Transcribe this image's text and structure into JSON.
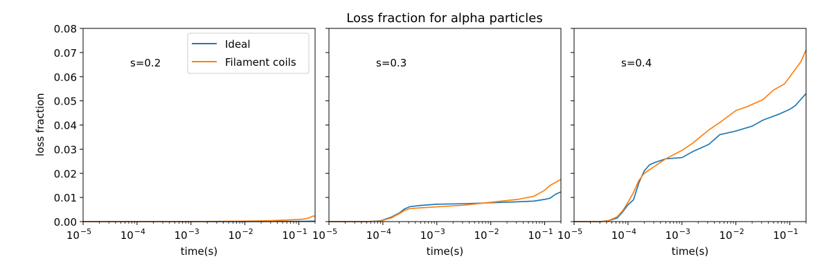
{
  "title": "Loss fraction for alpha particles",
  "colors": {
    "ideal": "#1f77b4",
    "filament": "#ff7f0e",
    "axes": "#000000"
  },
  "chart_data": {
    "type": "line",
    "title": "Loss fraction for alpha particles",
    "xscale": "log",
    "xlim": [
      1e-05,
      0.2
    ],
    "ylim": [
      0,
      0.08
    ],
    "yticks": [
      0,
      0.01,
      0.02,
      0.03,
      0.04,
      0.05,
      0.06,
      0.07,
      0.08
    ],
    "ytick_labels": [
      "0.00",
      "0.01",
      "0.02",
      "0.03",
      "0.04",
      "0.05",
      "0.06",
      "0.07",
      "0.08"
    ],
    "xticks": [
      -5,
      -4,
      -3,
      -2,
      -1
    ],
    "xtick_base": "10",
    "xtick_exponents": [
      "−5",
      "−4",
      "−3",
      "−2",
      "−1"
    ],
    "xlabel": "time(s)",
    "ylabel": "loss fraction",
    "legend": {
      "location": "top-right of first panel",
      "entries": [
        "Ideal",
        "Filament coils"
      ]
    },
    "panels": [
      {
        "label": "s=0.2",
        "series": [
          {
            "name": "Ideal",
            "x": [
              -5,
              -4,
              -3,
              -2,
              -1.1,
              -0.7
            ],
            "y": [
              0,
              0,
              0,
              0,
              0.0001,
              0.0002
            ]
          },
          {
            "name": "Filament coils",
            "x": [
              -5,
              -3,
              -2,
              -1.5,
              -1.2,
              -1.0,
              -0.9,
              -0.8,
              -0.75,
              -0.7
            ],
            "y": [
              0,
              0,
              0.0002,
              0.0004,
              0.0007,
              0.0009,
              0.0011,
              0.0016,
              0.0022,
              0.0023
            ]
          }
        ]
      },
      {
        "label": "s=0.3",
        "series": [
          {
            "name": "Ideal",
            "x": [
              -5,
              -4.3,
              -4.05,
              -3.85,
              -3.7,
              -3.6,
              -3.5,
              -3.3,
              -3.0,
              -2.5,
              -2.0,
              -1.5,
              -1.2,
              -1.0,
              -0.9,
              -0.8,
              -0.7
            ],
            "y": [
              0,
              0,
              0.0003,
              0.0018,
              0.0035,
              0.0052,
              0.0062,
              0.0067,
              0.0072,
              0.0074,
              0.0078,
              0.0082,
              0.0085,
              0.0092,
              0.0097,
              0.0113,
              0.0123
            ]
          },
          {
            "name": "Filament coils",
            "x": [
              -5,
              -4.3,
              -4.05,
              -3.85,
              -3.7,
              -3.6,
              -3.5,
              -3.3,
              -3.0,
              -2.5,
              -2.0,
              -1.5,
              -1.2,
              -1.0,
              -0.9,
              -0.8,
              -0.7
            ],
            "y": [
              0,
              0,
              0.0002,
              0.0015,
              0.0032,
              0.0046,
              0.0054,
              0.0057,
              0.0061,
              0.0068,
              0.008,
              0.0092,
              0.0105,
              0.013,
              0.015,
              0.0162,
              0.0175
            ]
          }
        ]
      },
      {
        "label": "s=0.4",
        "series": [
          {
            "name": "Ideal",
            "x": [
              -5,
              -4.5,
              -4.35,
              -4.2,
              -4.1,
              -4.0,
              -3.9,
              -3.8,
              -3.7,
              -3.6,
              -3.5,
              -3.3,
              -3.0,
              -2.8,
              -2.5,
              -2.3,
              -2.0,
              -1.7,
              -1.5,
              -1.2,
              -1.0,
              -0.9,
              -0.8,
              -0.7
            ],
            "y": [
              0,
              0,
              0.0004,
              0.0015,
              0.004,
              0.007,
              0.009,
              0.016,
              0.021,
              0.0235,
              0.0245,
              0.026,
              0.0265,
              0.029,
              0.032,
              0.036,
              0.0375,
              0.0395,
              0.042,
              0.0445,
              0.0465,
              0.048,
              0.0505,
              0.053
            ]
          },
          {
            "name": "Filament coils",
            "x": [
              -5,
              -4.5,
              -4.35,
              -4.2,
              -4.1,
              -4.0,
              -3.9,
              -3.8,
              -3.7,
              -3.6,
              -3.5,
              -3.3,
              -3.0,
              -2.8,
              -2.5,
              -2.3,
              -2.0,
              -1.8,
              -1.5,
              -1.3,
              -1.1,
              -1.0,
              -0.9,
              -0.8,
              -0.7
            ],
            "y": [
              0,
              0,
              0.0005,
              0.002,
              0.0045,
              0.008,
              0.012,
              0.017,
              0.02,
              0.0215,
              0.023,
              0.026,
              0.0295,
              0.0325,
              0.038,
              0.041,
              0.046,
              0.0475,
              0.0505,
              0.0545,
              0.057,
              0.06,
              0.063,
              0.066,
              0.071
            ]
          }
        ]
      }
    ]
  }
}
